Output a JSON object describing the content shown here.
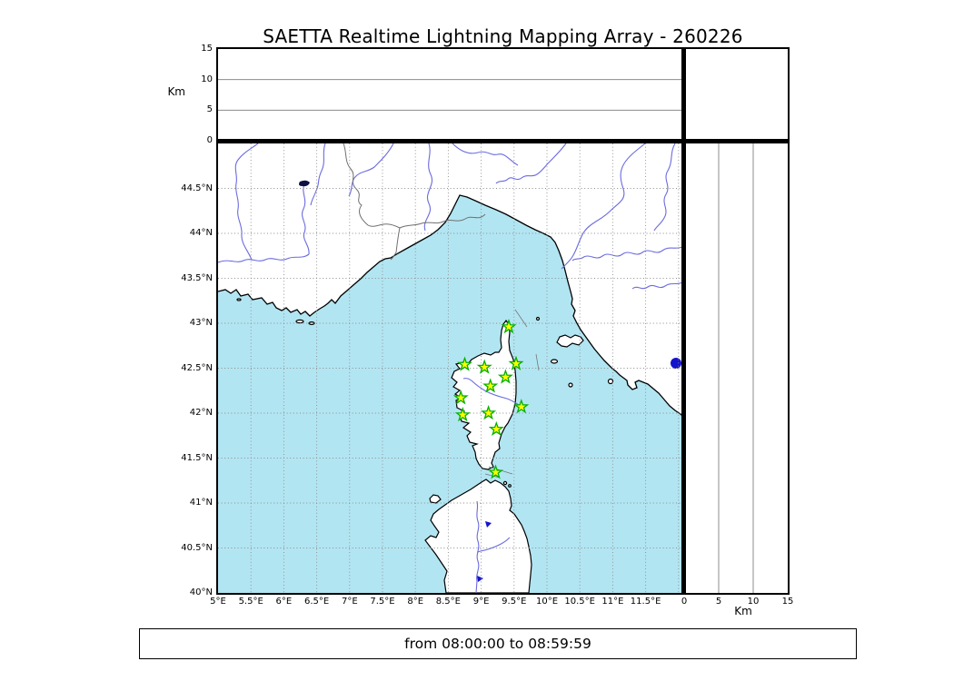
{
  "title": "SAETTA Realtime Lightning Mapping Array - 260226",
  "footer": {
    "text": "from 08:00:00 to 08:59:59"
  },
  "axes": {
    "altitude": {
      "unit_label": "Km",
      "tick_labels": [
        "0",
        "5",
        "10",
        "15"
      ],
      "tick_values": [
        0,
        5,
        10,
        15
      ],
      "max_km": 15
    },
    "distance": {
      "unit_label": "Km",
      "tick_labels": [
        "0",
        "5",
        "10",
        "15"
      ],
      "tick_values": [
        0,
        5,
        10,
        15
      ],
      "max_km": 15
    },
    "longitude": {
      "tick_labels": [
        "5°E",
        "5.5°E",
        "6°E",
        "6.5°E",
        "7°E",
        "7.5°E",
        "8°E",
        "8.5°E",
        "9°E",
        "9.5°E",
        "10°E",
        "10.5°E",
        "11°E",
        "11.5°E"
      ],
      "tick_values": [
        5,
        5.5,
        6,
        6.5,
        7,
        7.5,
        8,
        8.5,
        9,
        9.5,
        10,
        10.5,
        11,
        11.5
      ]
    },
    "latitude": {
      "tick_labels": [
        "44.5°N",
        "44°N",
        "43.5°N",
        "43°N",
        "42.5°N",
        "42°N",
        "41.5°N",
        "41°N",
        "40.5°N",
        "40°N"
      ],
      "tick_values": [
        44.5,
        44,
        43.5,
        43,
        42.5,
        42,
        41.5,
        41,
        40.5,
        40
      ]
    }
  },
  "colors": {
    "sea": "#b2e5f2",
    "land": "#ffffff",
    "coastline": "#000000",
    "river": "#6b6be0",
    "country_border": "#707070",
    "gridline": "#8c8c8c",
    "lake": "#1414cc",
    "alpine_lake": "#0d1242",
    "station_fill": "#ffff00",
    "station_edge": "#00b000"
  },
  "chart_data": {
    "type": "scatter",
    "title": "SAETTA Realtime Lightning Mapping Array - 260226",
    "time_window": "from 08:00:00 to 08:59:59",
    "map_extent": {
      "lon_range": [
        5,
        12.05
      ],
      "lat_range": [
        40,
        45
      ]
    },
    "grid_spacing_deg": 0.5,
    "altitude_axis_km": {
      "range": [
        0,
        15
      ],
      "gridlines_km": [
        5,
        10
      ]
    },
    "stations": {
      "marker": "star",
      "fill": "#ffff00",
      "edge": "#00b000",
      "lonlat": [
        [
          9.42,
          42.96
        ],
        [
          8.75,
          42.54
        ],
        [
          9.05,
          42.51
        ],
        [
          9.53,
          42.55
        ],
        [
          9.37,
          42.4
        ],
        [
          9.14,
          42.3
        ],
        [
          8.69,
          42.17
        ],
        [
          9.61,
          42.07
        ],
        [
          8.72,
          41.98
        ],
        [
          9.11,
          42.0
        ],
        [
          9.23,
          41.82
        ],
        [
          9.22,
          41.34
        ]
      ]
    },
    "lightning_sources": []
  }
}
